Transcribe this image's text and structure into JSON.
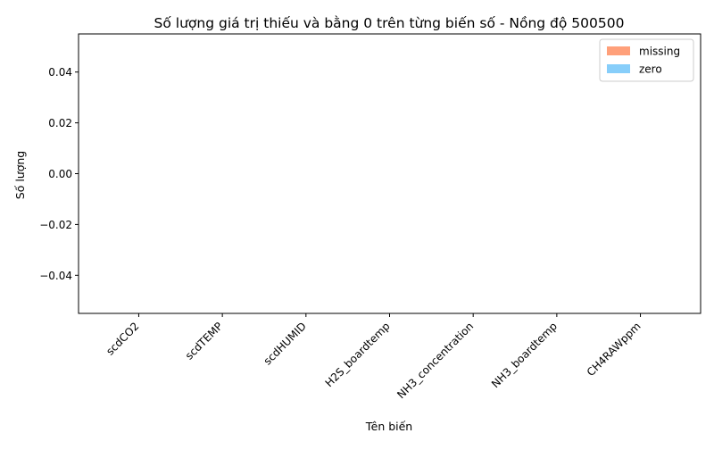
{
  "chart_data": {
    "type": "bar",
    "title": "Số lượng giá trị thiếu và bằng 0 trên từng biến số - Nồng độ 500500",
    "xlabel": "Tên biến",
    "ylabel": "Số lượng",
    "categories": [
      "scdCO2",
      "scdTEMP",
      "scdHUMID",
      "H2S_boardtemp",
      "NH3_concentration",
      "NH3_boardtemp",
      "CH4RAWppm"
    ],
    "series": [
      {
        "name": "missing",
        "values": [
          0,
          0,
          0,
          0,
          0,
          0,
          0
        ],
        "color": "#ffa07a"
      },
      {
        "name": "zero",
        "values": [
          0,
          0,
          0,
          0,
          0,
          0,
          0
        ],
        "color": "#87cefa"
      }
    ],
    "yticks": [
      -0.04,
      -0.02,
      0.0,
      0.02,
      0.04
    ],
    "ytick_labels": [
      "−0.04",
      "−0.02",
      "0.00",
      "0.02",
      "0.04"
    ],
    "ylim": [
      -0.055,
      0.055
    ],
    "grid": false,
    "legend_position": "top-right"
  }
}
